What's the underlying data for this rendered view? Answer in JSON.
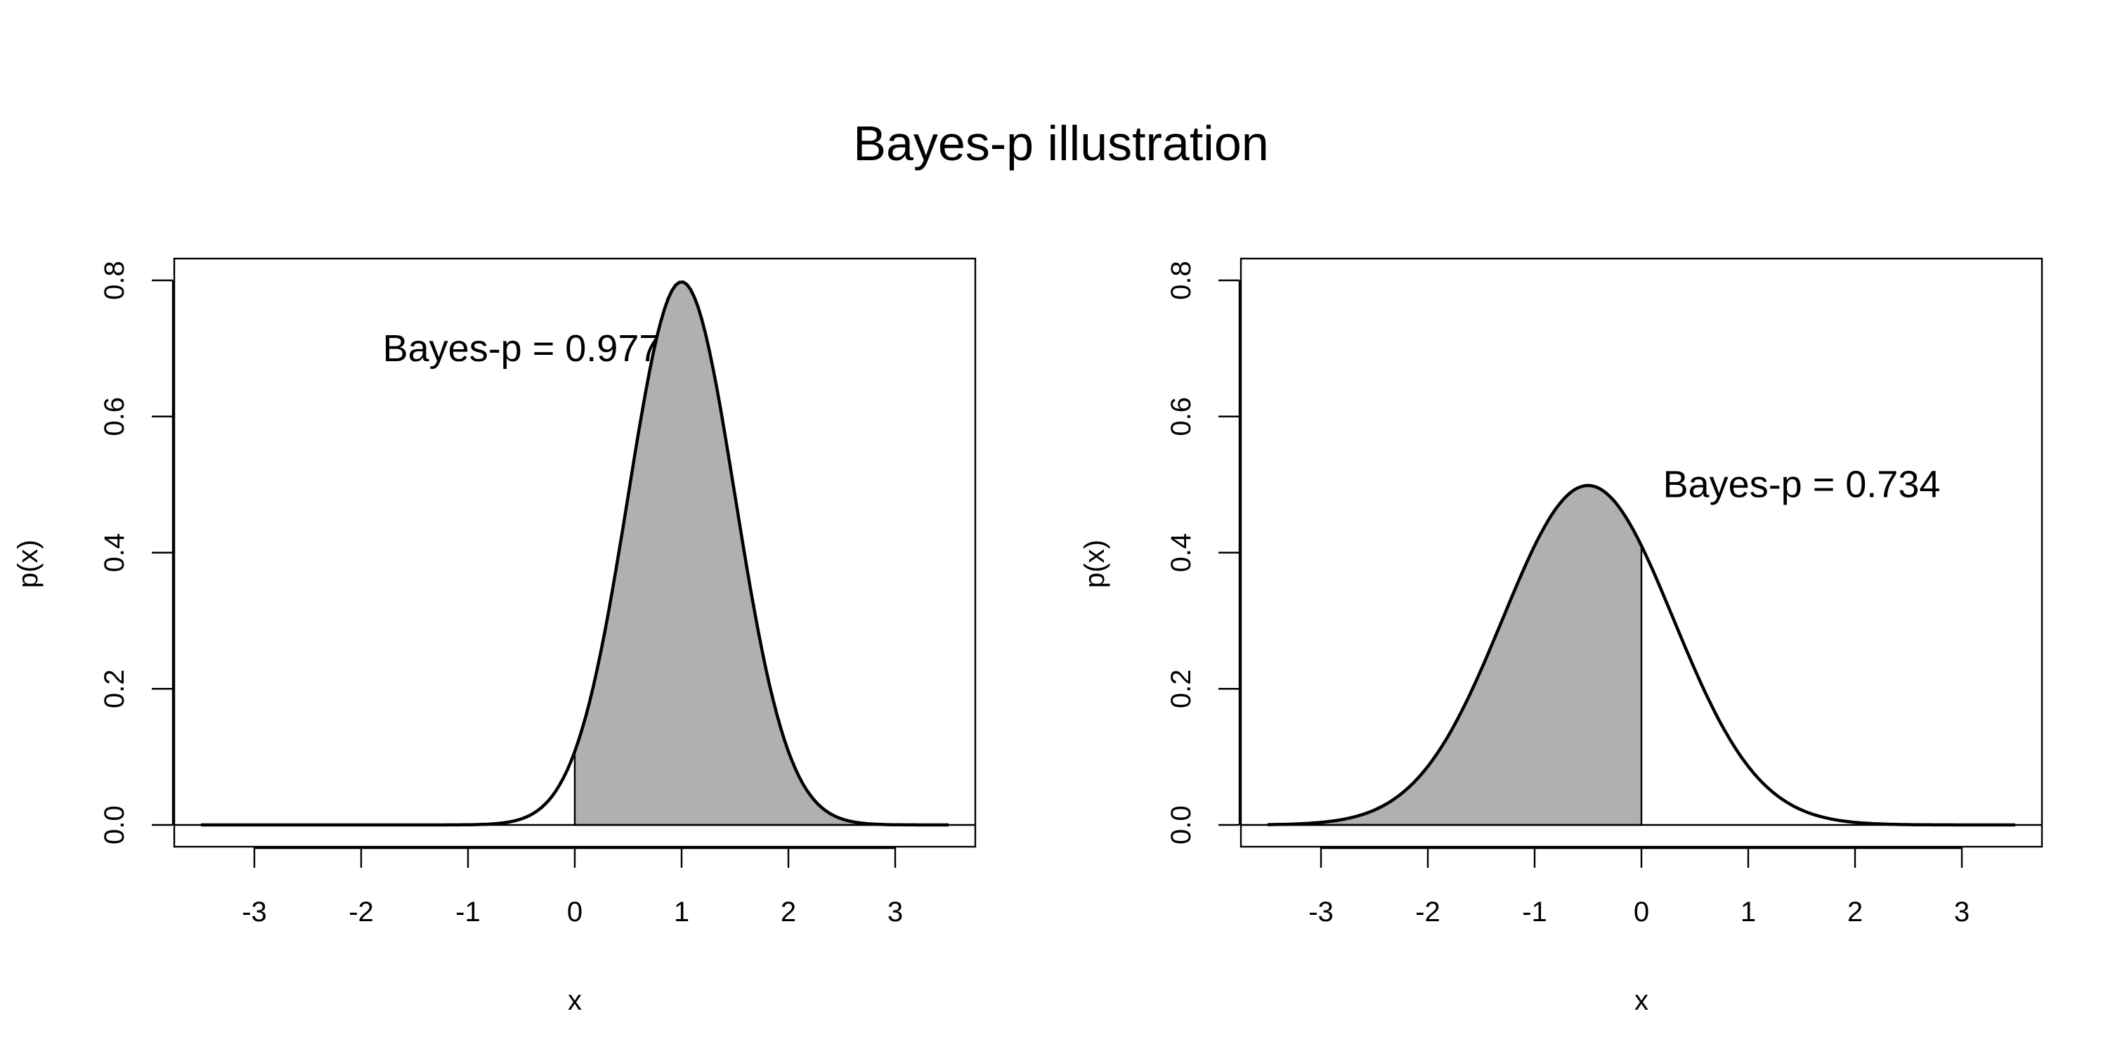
{
  "figure": {
    "title": "Bayes-p illustration"
  },
  "chart_data": [
    {
      "type": "area",
      "title": "",
      "xlabel": "x",
      "ylabel": "p(x)",
      "xlim": [
        -3.75,
        3.75
      ],
      "ylim": [
        -0.032,
        0.832
      ],
      "xticks": [
        -3,
        -2,
        -1,
        0,
        1,
        2,
        3
      ],
      "xtick_labels": [
        "-3",
        "-2",
        "-1",
        "0",
        "1",
        "2",
        "3"
      ],
      "yticks": [
        0.0,
        0.2,
        0.4,
        0.6,
        0.8
      ],
      "ytick_labels": [
        "0.0",
        "0.2",
        "0.4",
        "0.6",
        "0.8"
      ],
      "curve": {
        "distribution": "normal",
        "mean": 1.0,
        "sd": 0.5,
        "x_from": -3.5,
        "x_to": 3.5
      },
      "shaded_region": {
        "x_from": 0,
        "x_to": 3.5,
        "fill": "#b0b0b0"
      },
      "annotation": {
        "text": "Bayes-p = 0.977",
        "x": -0.5,
        "y": 0.7
      },
      "grid": false
    },
    {
      "type": "area",
      "title": "",
      "xlabel": "x",
      "ylabel": "p(x)",
      "xlim": [
        -3.75,
        3.75
      ],
      "ylim": [
        -0.032,
        0.832
      ],
      "xticks": [
        -3,
        -2,
        -1,
        0,
        1,
        2,
        3
      ],
      "xtick_labels": [
        "-3",
        "-2",
        "-1",
        "0",
        "1",
        "2",
        "3"
      ],
      "yticks": [
        0.0,
        0.2,
        0.4,
        0.6,
        0.8
      ],
      "ytick_labels": [
        "0.0",
        "0.2",
        "0.4",
        "0.6",
        "0.8"
      ],
      "curve": {
        "distribution": "normal",
        "mean": -0.5,
        "sd": 0.8,
        "x_from": -3.5,
        "x_to": 3.5
      },
      "shaded_region": {
        "x_from": -3.5,
        "x_to": 0,
        "fill": "#b0b0b0"
      },
      "annotation": {
        "text": "Bayes-p = 0.734",
        "x": 1.5,
        "y": 0.5
      },
      "grid": false
    }
  ]
}
